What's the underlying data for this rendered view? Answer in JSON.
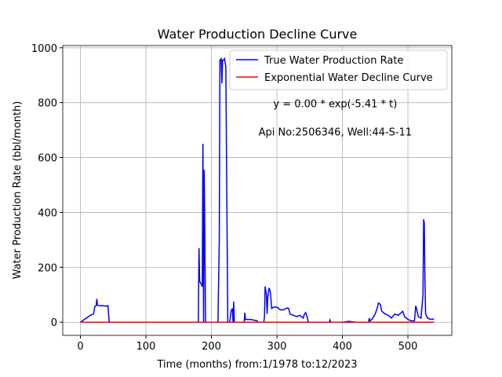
{
  "chart_data": {
    "type": "line",
    "title": "Water Production Decline Curve",
    "xlabel": "Time (months) from:1/1978 to:12/2023",
    "ylabel": "Water Production Rate (bbl/month)",
    "annotations": [
      "y = 0.00 * exp(-5.41 * t)",
      "Api No:2506346, Well:44-S-11"
    ],
    "xlim": [
      -27,
      567
    ],
    "ylim": [
      -48,
      1008
    ],
    "xticks": [
      0,
      100,
      200,
      300,
      400,
      500
    ],
    "yticks": [
      0,
      200,
      400,
      600,
      800,
      1000
    ],
    "grid": true,
    "legend": "upper right",
    "series": [
      {
        "name": "True Water Production Rate",
        "color": "#0000ff",
        "x": [
          0,
          15,
          18,
          20,
          22,
          24,
          25,
          26,
          28,
          35,
          40,
          42,
          43,
          44,
          180,
          181,
          182,
          184,
          186,
          187,
          188,
          189,
          190,
          191,
          210,
          212,
          213,
          215,
          216,
          217,
          219,
          220,
          222,
          224,
          225,
          228,
          230,
          232,
          233,
          234,
          235,
          250,
          251,
          252,
          260,
          270,
          271,
          280,
          281,
          282,
          284,
          285,
          286,
          288,
          290,
          292,
          295,
          300,
          305,
          310,
          315,
          318,
          320,
          325,
          330,
          335,
          340,
          342,
          344,
          346,
          348,
          380,
          381,
          382,
          400,
          410,
          420,
          440,
          441,
          442,
          445,
          450,
          453,
          455,
          458,
          460,
          465,
          470,
          475,
          480,
          485,
          490,
          492,
          495,
          500,
          505,
          510,
          512,
          514,
          516,
          520,
          523,
          524,
          525,
          526,
          527,
          530,
          535,
          538,
          540
        ],
        "values": [
          0,
          25,
          28,
          30,
          58,
          60,
          85,
          62,
          60,
          60,
          58,
          60,
          30,
          0,
          0,
          270,
          150,
          140,
          130,
          650,
          0,
          555,
          300,
          0,
          0,
          300,
          955,
          960,
          870,
          955,
          955,
          960,
          930,
          300,
          0,
          0,
          40,
          50,
          0,
          75,
          0,
          0,
          35,
          10,
          10,
          5,
          0,
          0,
          20,
          130,
          100,
          30,
          90,
          125,
          110,
          50,
          55,
          55,
          45,
          45,
          52,
          50,
          30,
          25,
          20,
          25,
          15,
          30,
          35,
          20,
          0,
          0,
          8,
          0,
          0,
          3,
          0,
          0,
          15,
          5,
          10,
          30,
          50,
          70,
          65,
          40,
          30,
          25,
          15,
          30,
          25,
          35,
          40,
          20,
          10,
          5,
          5,
          60,
          40,
          20,
          15,
          100,
          375,
          360,
          150,
          30,
          15,
          10,
          12,
          10
        ]
      },
      {
        "name": "Exponential Water Decline Curve",
        "color": "#ff0000",
        "x": [
          0,
          540
        ],
        "values": [
          0,
          0
        ]
      }
    ]
  }
}
